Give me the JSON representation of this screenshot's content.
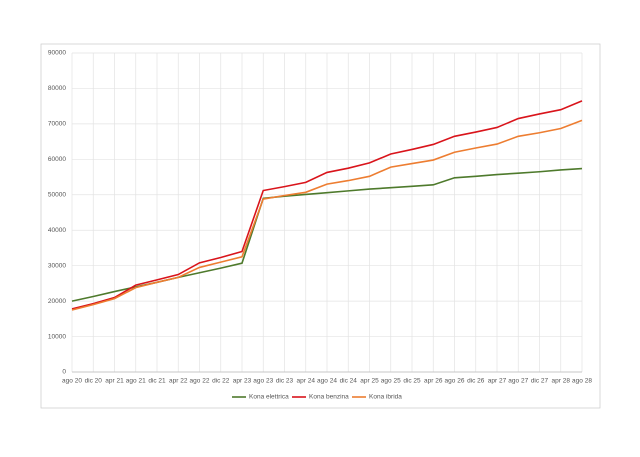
{
  "chart_data": {
    "type": "line",
    "categories": [
      "ago 20",
      "dic 20",
      "apr 21",
      "ago 21",
      "dic 21",
      "apr 22",
      "ago 22",
      "dic 22",
      "apr 23",
      "ago 23",
      "dic 23",
      "apr 24",
      "ago 24",
      "dic 24",
      "apr 25",
      "ago 25",
      "dic 25",
      "apr 26",
      "ago 26",
      "dic 26",
      "apr 27",
      "ago 27",
      "dic 27",
      "apr 28",
      "ago 28"
    ],
    "series": [
      {
        "name": "Kona elettrica",
        "color": "#4e7a2c",
        "values": [
          20000,
          21300,
          22700,
          24000,
          25300,
          26700,
          28000,
          29300,
          30700,
          49000,
          49600,
          50100,
          50600,
          51100,
          51600,
          52000,
          52400,
          52800,
          54800,
          55200,
          55700,
          56100,
          56500,
          57000,
          57400
        ]
      },
      {
        "name": "Kona benzina",
        "color": "#d9141b",
        "values": [
          17800,
          19300,
          21000,
          24500,
          26000,
          27500,
          30800,
          32300,
          34000,
          51200,
          52300,
          53500,
          56300,
          57500,
          59000,
          61500,
          62800,
          64200,
          66500,
          67700,
          69000,
          71500,
          72800,
          74000,
          76500
        ]
      },
      {
        "name": "Kona ibrida",
        "color": "#ed7d31",
        "values": [
          17500,
          19000,
          20700,
          23800,
          25300,
          26700,
          29500,
          31000,
          32500,
          48800,
          49800,
          50700,
          53000,
          54000,
          55200,
          57800,
          58800,
          59800,
          62000,
          63200,
          64300,
          66500,
          67500,
          68700,
          71000
        ]
      }
    ],
    "ylim": [
      0,
      90000
    ],
    "yticks": [
      0,
      10000,
      20000,
      30000,
      40000,
      50000,
      60000,
      70000,
      80000,
      90000
    ],
    "grid": true,
    "legend": "bottom"
  }
}
